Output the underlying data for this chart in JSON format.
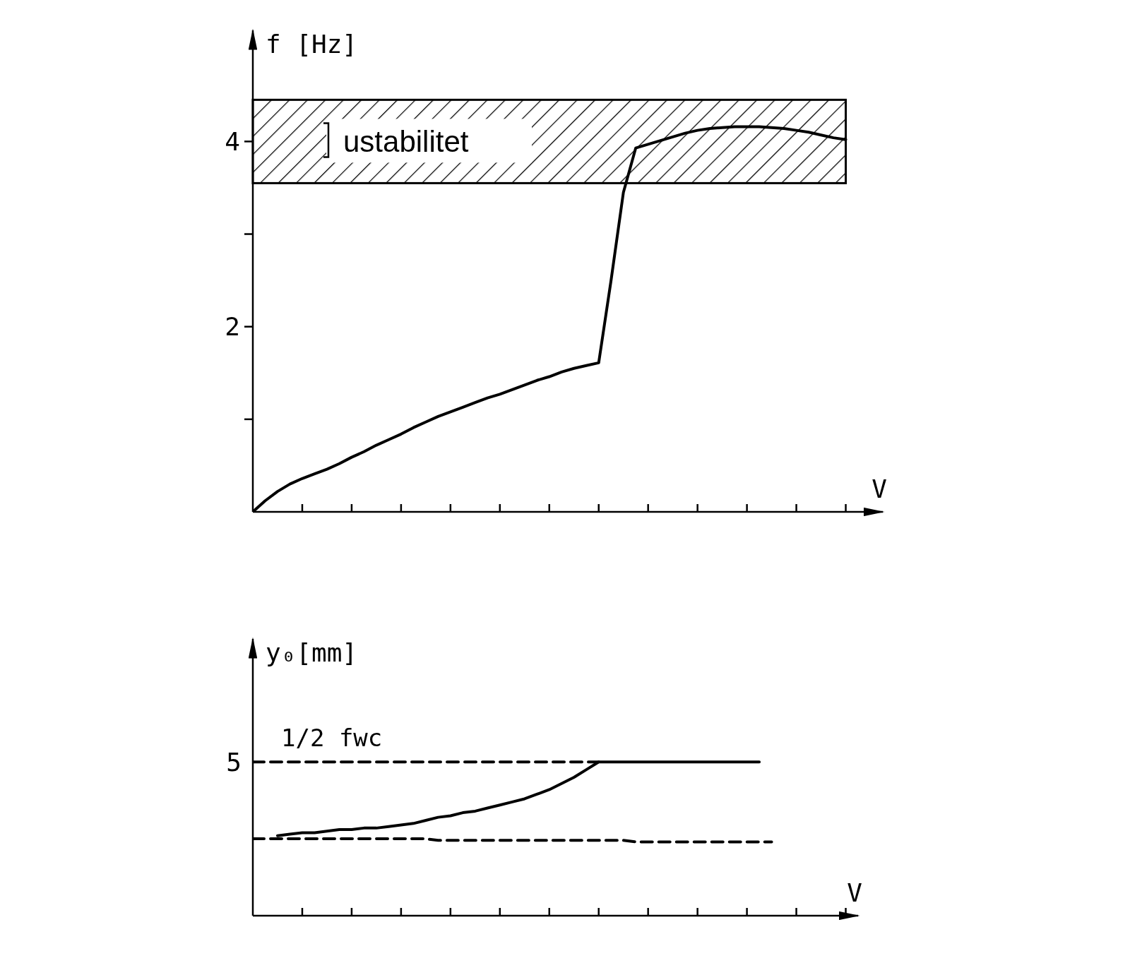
{
  "chart_data": [
    {
      "type": "line",
      "xlabel": "V",
      "ylabel": "f [Hz]",
      "categories": [
        null,
        null,
        null,
        null,
        null,
        null,
        null,
        null,
        null,
        null,
        null,
        null,
        null,
        null,
        null,
        null,
        null,
        null,
        null,
        null,
        null,
        null,
        null,
        null,
        null,
        null,
        null,
        null,
        null,
        null,
        null,
        null,
        null,
        null,
        null,
        null,
        null,
        null,
        null,
        null,
        null,
        null,
        null,
        null,
        null,
        null,
        null,
        null,
        null,
        null,
        null,
        null
      ],
      "series": [
        {
          "color": "#000000",
          "values": [
            0,
            0.12,
            0.22,
            0.3,
            0.36,
            0.41,
            0.46,
            0.52,
            0.59,
            0.65,
            0.72,
            0.78,
            0.84,
            0.91,
            0.97,
            1.03,
            1.08,
            1.13,
            1.18,
            1.23,
            1.27,
            1.32,
            1.37,
            1.42,
            1.46,
            1.51,
            1.55,
            1.58,
            1.61,
            2.5,
            3.45,
            3.93,
            3.97,
            4.01,
            4.05,
            4.09,
            4.12,
            4.14,
            4.15,
            4.16,
            4.16,
            4.16,
            4.15,
            4.14,
            4.12,
            4.1,
            4.07,
            4.04,
            4.02,
            null,
            null,
            null
          ]
        }
      ],
      "ylim": [
        0,
        5.2
      ],
      "yticks": [
        {
          "value": 1,
          "label": null
        },
        2,
        {
          "value": 3,
          "label": null
        },
        4
      ],
      "bands": [
        {
          "axis": "y",
          "from": 3.55,
          "to": 4.45,
          "label": "ustabilitet",
          "color": "#000000"
        }
      ],
      "tick_labels": "y"
    },
    {
      "type": "line",
      "xlabel": "V",
      "ylabel": "y₀[mm]",
      "categories": [
        null,
        null,
        null,
        null,
        null,
        null,
        null,
        null,
        null,
        null,
        null,
        null,
        null,
        null,
        null,
        null,
        null,
        null,
        null,
        null,
        null,
        null,
        null,
        null,
        null,
        null,
        null,
        null,
        null,
        null,
        null,
        null,
        null,
        null,
        null,
        null,
        null,
        null,
        null,
        null,
        null,
        null,
        null,
        null,
        null,
        null,
        null,
        null,
        null,
        null
      ],
      "series": [
        {
          "name": "1/2 fwc",
          "color": "#000000",
          "line_style": "dashed",
          "values": [
            5,
            5,
            5,
            5,
            5,
            5,
            5,
            5,
            5,
            5,
            5,
            5,
            5,
            5,
            5,
            5,
            5,
            5,
            5,
            5,
            5,
            5,
            5,
            5,
            5,
            5,
            5,
            5,
            5,
            null,
            null,
            null,
            null,
            null,
            null,
            null,
            null,
            null,
            null,
            null,
            null,
            null,
            null,
            null,
            null,
            null,
            null,
            null,
            null,
            null
          ],
          "value_labels": [
            "5",
            null,
            null,
            null,
            null,
            null,
            null,
            null,
            null,
            null,
            null,
            null,
            null,
            null,
            null,
            null,
            null,
            null,
            null,
            null,
            null,
            null,
            null,
            null,
            null,
            null,
            null,
            null,
            null,
            null,
            null,
            null,
            null,
            null,
            null,
            null,
            null,
            null,
            null,
            null,
            null,
            null,
            null,
            null,
            null,
            null,
            null,
            null,
            null,
            null
          ]
        },
        {
          "color": "#000000",
          "values": [
            null,
            null,
            2.6,
            2.65,
            2.7,
            2.7,
            2.75,
            2.8,
            2.8,
            2.85,
            2.85,
            2.9,
            2.95,
            3.0,
            3.1,
            3.2,
            3.25,
            3.35,
            3.4,
            3.5,
            3.6,
            3.7,
            3.8,
            3.95,
            4.1,
            4.3,
            4.5,
            4.75,
            5,
            5,
            5,
            5,
            5,
            5,
            5,
            5,
            5,
            5,
            5,
            5,
            5,
            5,
            null,
            null,
            null,
            null,
            null,
            null,
            null,
            null
          ]
        },
        {
          "color": "#000000",
          "line_style": "dashed",
          "values": [
            2.5,
            2.5,
            2.5,
            2.5,
            2.5,
            2.5,
            2.5,
            2.5,
            2.5,
            2.5,
            2.5,
            2.5,
            2.5,
            2.5,
            2.5,
            2.45,
            2.45,
            2.45,
            2.45,
            2.45,
            2.45,
            2.45,
            2.45,
            2.45,
            2.45,
            2.45,
            2.45,
            2.45,
            2.45,
            2.45,
            2.45,
            2.4,
            2.4,
            2.4,
            2.4,
            2.4,
            2.4,
            2.4,
            2.4,
            2.4,
            2.4,
            2.4,
            2.4,
            null,
            null,
            null,
            null,
            null,
            null,
            null
          ]
        }
      ],
      "ylim": [
        0,
        9
      ],
      "tick_labels": false
    }
  ]
}
